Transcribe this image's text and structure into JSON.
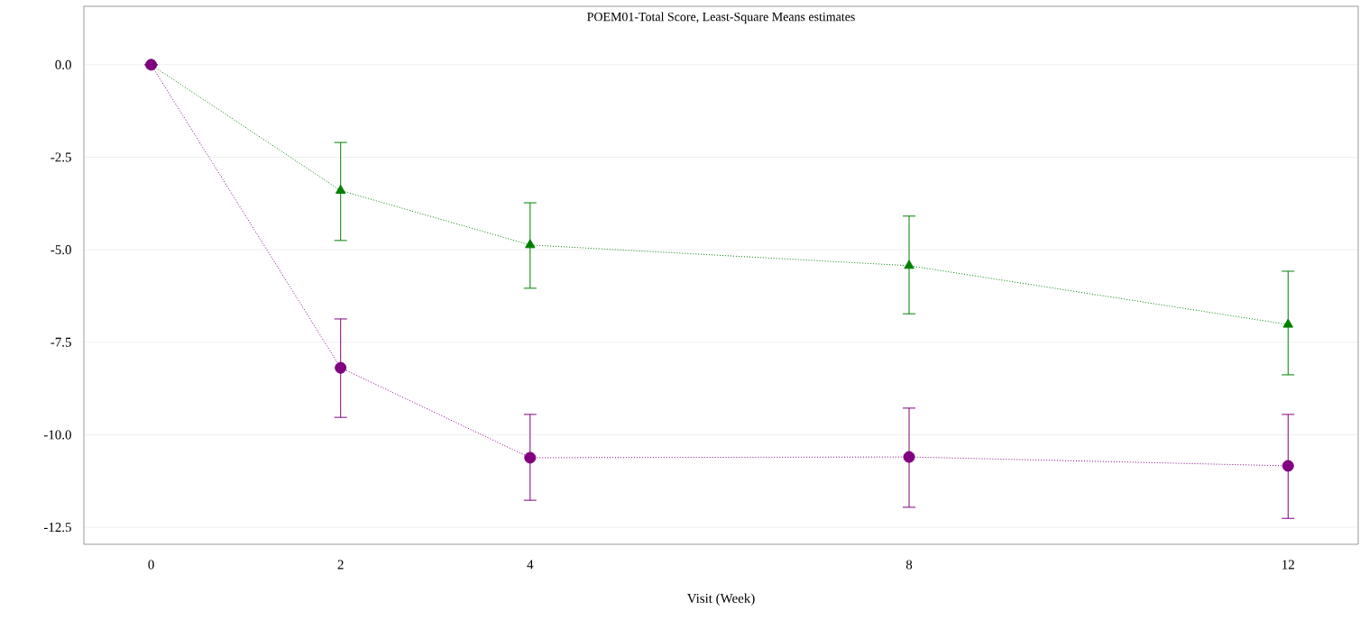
{
  "chart_data": {
    "type": "line",
    "title": "POEM01-Total Score, Least-Square Means estimates",
    "xlabel": "Visit (Week)",
    "x": [
      0,
      2,
      4,
      8,
      12
    ],
    "series": [
      {
        "color": "#008000",
        "marker": "triangle",
        "values": [
          0,
          -3.4,
          -4.87,
          -5.43,
          -7.02
        ],
        "errors": [
          null,
          [
            -4.75,
            -2.1
          ],
          [
            -6.04,
            -3.73
          ],
          [
            -6.73,
            -4.09
          ],
          [
            -8.38,
            -5.58
          ]
        ]
      },
      {
        "color": "#800080",
        "marker": "circle",
        "values": [
          0,
          -8.19,
          -10.62,
          -10.6,
          -10.84
        ],
        "errors": [
          null,
          [
            -9.53,
            -6.87
          ],
          [
            -11.77,
            -9.45
          ],
          [
            -11.96,
            -9.28
          ],
          [
            -12.26,
            -9.45
          ]
        ]
      }
    ],
    "xlim": [
      -0.71,
      12.74
    ],
    "ylim": [
      -12.96,
      1.58
    ],
    "xticks": [
      0,
      2,
      4,
      8,
      12
    ],
    "yticks": [
      {
        "value": 0,
        "label": "0.0"
      },
      {
        "value": -2.5,
        "label": "-2.5"
      },
      {
        "value": -5,
        "label": "-5.0"
      },
      {
        "value": -7.5,
        "label": "-7.5"
      },
      {
        "value": -10,
        "label": "-10.0"
      },
      {
        "value": -12.5,
        "label": "-12.5"
      }
    ],
    "grid": "y",
    "line_style": "dotted"
  }
}
